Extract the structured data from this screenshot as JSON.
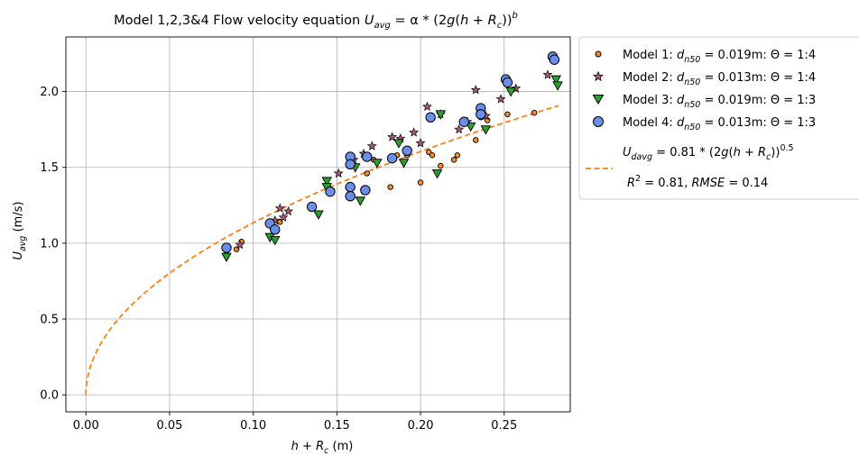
{
  "chart_data": {
    "type": "scatter",
    "title": {
      "prefix": "Model 1,2,3&4 Flow velocity equation ",
      "equation": {
        "U": "U",
        "sub": "avg",
        "eq": " = α * (2",
        "g": "g",
        "paren": "(",
        "h": "h",
        "plus": " + ",
        "R": "R",
        "Rsub": "c",
        "close": "))",
        "b": "b"
      }
    },
    "xlabel": {
      "h": "h",
      "plus": " + ",
      "R": "R",
      "sub": "c",
      "unit": " (m)"
    },
    "ylabel": {
      "U": "U",
      "sub": "avg",
      "unit": " (m/s)"
    },
    "xlim": [
      -0.012,
      0.2895
    ],
    "ylim": [
      -0.112,
      2.36
    ],
    "xticks": [
      0.0,
      0.05,
      0.1,
      0.15,
      0.2,
      0.25
    ],
    "xtick_labels": [
      "0.00",
      "0.05",
      "0.10",
      "0.15",
      "0.20",
      "0.25"
    ],
    "yticks": [
      0.0,
      0.5,
      1.0,
      1.5,
      2.0
    ],
    "ytick_labels": [
      "0.0",
      "0.5",
      "1.0",
      "1.5",
      "2.0"
    ],
    "grid": true,
    "legend_position": "outside-right-top",
    "series": [
      {
        "label": {
          "pre": "Model 1: ",
          "d": "d",
          "sub": "n50",
          "rest": " = 0.019m: Θ = 1:4"
        },
        "marker": "circle-small",
        "color": "#f28e2b",
        "points": [
          [
            0.084,
            0.95
          ],
          [
            0.09,
            0.96
          ],
          [
            0.093,
            1.01
          ],
          [
            0.112,
            1.1
          ],
          [
            0.116,
            1.14
          ],
          [
            0.136,
            1.24
          ],
          [
            0.146,
            1.33
          ],
          [
            0.158,
            1.35
          ],
          [
            0.166,
            1.34
          ],
          [
            0.168,
            1.46
          ],
          [
            0.172,
            1.55
          ],
          [
            0.182,
            1.37
          ],
          [
            0.186,
            1.58
          ],
          [
            0.192,
            1.58
          ],
          [
            0.2,
            1.4
          ],
          [
            0.205,
            1.6
          ],
          [
            0.207,
            1.58
          ],
          [
            0.212,
            1.51
          ],
          [
            0.22,
            1.55
          ],
          [
            0.222,
            1.58
          ],
          [
            0.233,
            1.68
          ],
          [
            0.236,
            1.83
          ],
          [
            0.24,
            1.81
          ],
          [
            0.252,
            1.85
          ],
          [
            0.268,
            1.86
          ]
        ]
      },
      {
        "label": {
          "pre": "Model 2: ",
          "d": "d",
          "sub": "n50",
          "rest": " = 0.013m: Θ = 1:4"
        },
        "marker": "star",
        "color": "#a85a78",
        "points": [
          [
            0.092,
            0.99
          ],
          [
            0.113,
            1.15
          ],
          [
            0.116,
            1.23
          ],
          [
            0.118,
            1.17
          ],
          [
            0.121,
            1.21
          ],
          [
            0.146,
            1.35
          ],
          [
            0.151,
            1.46
          ],
          [
            0.16,
            1.55
          ],
          [
            0.166,
            1.59
          ],
          [
            0.171,
            1.64
          ],
          [
            0.183,
            1.7
          ],
          [
            0.188,
            1.69
          ],
          [
            0.196,
            1.73
          ],
          [
            0.2,
            1.66
          ],
          [
            0.204,
            1.9
          ],
          [
            0.212,
            1.85
          ],
          [
            0.223,
            1.75
          ],
          [
            0.228,
            1.8
          ],
          [
            0.233,
            2.01
          ],
          [
            0.239,
            1.84
          ],
          [
            0.248,
            1.95
          ],
          [
            0.257,
            2.02
          ],
          [
            0.276,
            2.11
          ]
        ]
      },
      {
        "label": {
          "pre": "Model 3: ",
          "d": "d",
          "sub": "n50",
          "rest": " = 0.019m: Θ = 1:3"
        },
        "marker": "triangle-down",
        "color": "#2ca02c",
        "points": [
          [
            0.084,
            0.91
          ],
          [
            0.11,
            1.04
          ],
          [
            0.113,
            1.02
          ],
          [
            0.139,
            1.19
          ],
          [
            0.144,
            1.41
          ],
          [
            0.144,
            1.37
          ],
          [
            0.161,
            1.5
          ],
          [
            0.164,
            1.28
          ],
          [
            0.174,
            1.53
          ],
          [
            0.187,
            1.66
          ],
          [
            0.19,
            1.53
          ],
          [
            0.21,
            1.46
          ],
          [
            0.212,
            1.85
          ],
          [
            0.23,
            1.77
          ],
          [
            0.239,
            1.75
          ],
          [
            0.254,
            2.0
          ],
          [
            0.281,
            2.08
          ],
          [
            0.282,
            2.04
          ]
        ]
      },
      {
        "label": {
          "pre": "Model 4: ",
          "d": "d",
          "sub": "n50",
          "rest": " = 0.013m: Θ = 1:3"
        },
        "marker": "circle-large",
        "color": "#6b8fe8",
        "points": [
          [
            0.084,
            0.97
          ],
          [
            0.11,
            1.13
          ],
          [
            0.113,
            1.09
          ],
          [
            0.135,
            1.24
          ],
          [
            0.146,
            1.34
          ],
          [
            0.158,
            1.57
          ],
          [
            0.158,
            1.52
          ],
          [
            0.158,
            1.37
          ],
          [
            0.158,
            1.31
          ],
          [
            0.167,
            1.35
          ],
          [
            0.168,
            1.57
          ],
          [
            0.183,
            1.56
          ],
          [
            0.192,
            1.61
          ],
          [
            0.206,
            1.83
          ],
          [
            0.226,
            1.8
          ],
          [
            0.236,
            1.89
          ],
          [
            0.236,
            1.85
          ],
          [
            0.251,
            2.08
          ],
          [
            0.252,
            2.06
          ],
          [
            0.279,
            2.23
          ],
          [
            0.28,
            2.21
          ]
        ]
      }
    ],
    "fit": {
      "equation": "U_davg = 0.81 * (2g(h + R_c))^0.5",
      "alpha": 0.81,
      "b": 0.5,
      "g": 9.81,
      "x_range": [
        0.0,
        0.2825
      ],
      "color": "#ff7f0e",
      "style": "dashed",
      "label_line1": {
        "U": "U",
        "sub": "davg",
        "eq": " = 0.81 * (2",
        "g": "g",
        "paren": "(",
        "h": "h",
        "plus": " + ",
        "R": "R",
        "Rsub": "c",
        "close": "))",
        "exp": "0.5"
      },
      "label_line2": {
        "R": "R",
        "sup": "2",
        "eq": " = 0.81, ",
        "rmse": "RMSE",
        "eq2": " = 0.14"
      }
    }
  }
}
